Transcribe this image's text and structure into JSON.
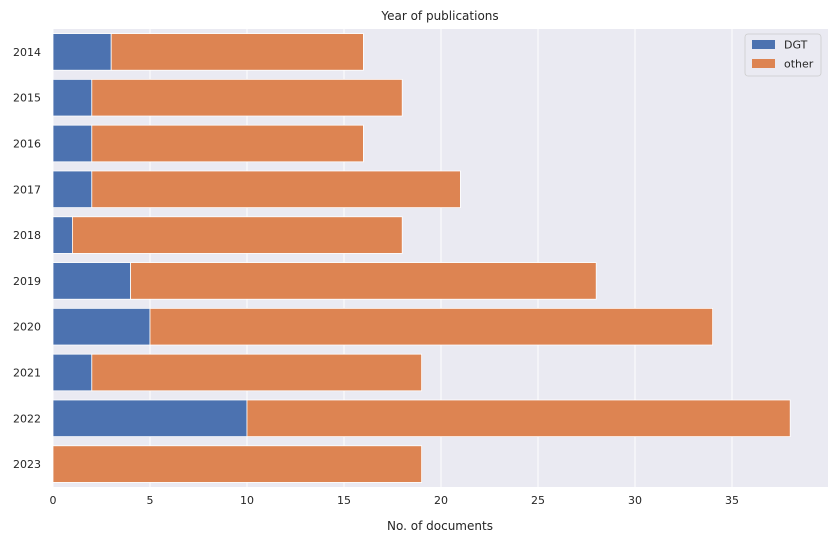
{
  "chart_data": {
    "type": "bar",
    "orientation": "horizontal",
    "stacked": true,
    "title": "Year of publications",
    "xlabel": "No. of documents",
    "ylabel": "",
    "categories": [
      "2014",
      "2015",
      "2016",
      "2017",
      "2018",
      "2019",
      "2020",
      "2021",
      "2022",
      "2023"
    ],
    "series": [
      {
        "name": "DGT",
        "color": "#4c72b0",
        "values": [
          3,
          2,
          2,
          2,
          1,
          4,
          5,
          2,
          10,
          0
        ]
      },
      {
        "name": "other",
        "color": "#dd8452",
        "values": [
          13,
          16,
          14,
          19,
          17,
          24,
          29,
          17,
          28,
          19
        ]
      }
    ],
    "xlim": [
      0,
      40
    ],
    "xticks": [
      "0",
      "5",
      "10",
      "15",
      "20",
      "25",
      "30",
      "35"
    ],
    "grid": true,
    "legend_position": "top-right",
    "background_color": "#eaeaf2"
  }
}
